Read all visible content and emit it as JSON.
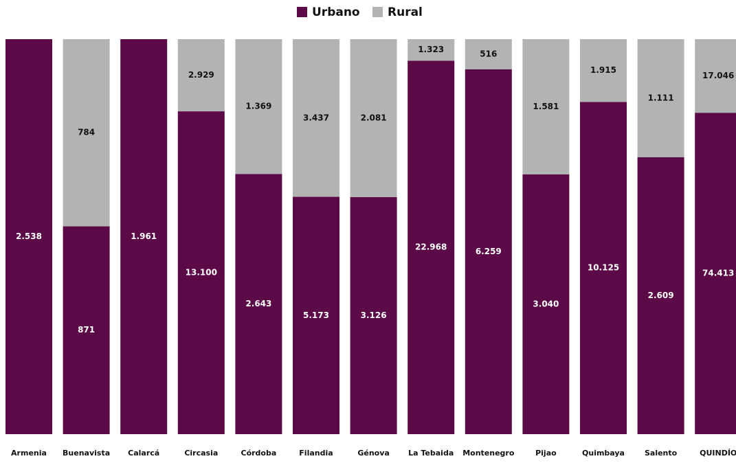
{
  "chart_data": {
    "type": "stacked_bar_100",
    "categories": [
      "Armenia",
      "Buenavista",
      "Calarcá",
      "Circasia",
      "Córdoba",
      "Filandia",
      "Génova",
      "La Tebaida",
      "Montenegro",
      "Pijao",
      "Quimbaya",
      "Salento",
      "QUINDÍO"
    ],
    "series": [
      {
        "name": "Urbano",
        "color": "#5c0a47",
        "values": [
          2538,
          871,
          1961,
          13100,
          2643,
          5173,
          3126,
          22968,
          6259,
          3040,
          10125,
          2609,
          74413
        ],
        "value_labels": [
          "2.538",
          "871",
          "1.961",
          "13.100",
          "2.643",
          "5.173",
          "3.126",
          "22.968",
          "6.259",
          "3.040",
          "10.125",
          "2.609",
          "74.413"
        ]
      },
      {
        "name": "Rural",
        "color": "#b3b3b3",
        "values": [
          null,
          784,
          null,
          2929,
          1369,
          3437,
          2081,
          1323,
          516,
          1581,
          1915,
          1111,
          17046
        ],
        "value_labels": [
          null,
          "784",
          null,
          "2.929",
          "1.369",
          "3.437",
          "2.081",
          "1.323",
          "516",
          "1.581",
          "1.915",
          "1.111",
          "17.046"
        ]
      }
    ],
    "legend": "top"
  }
}
